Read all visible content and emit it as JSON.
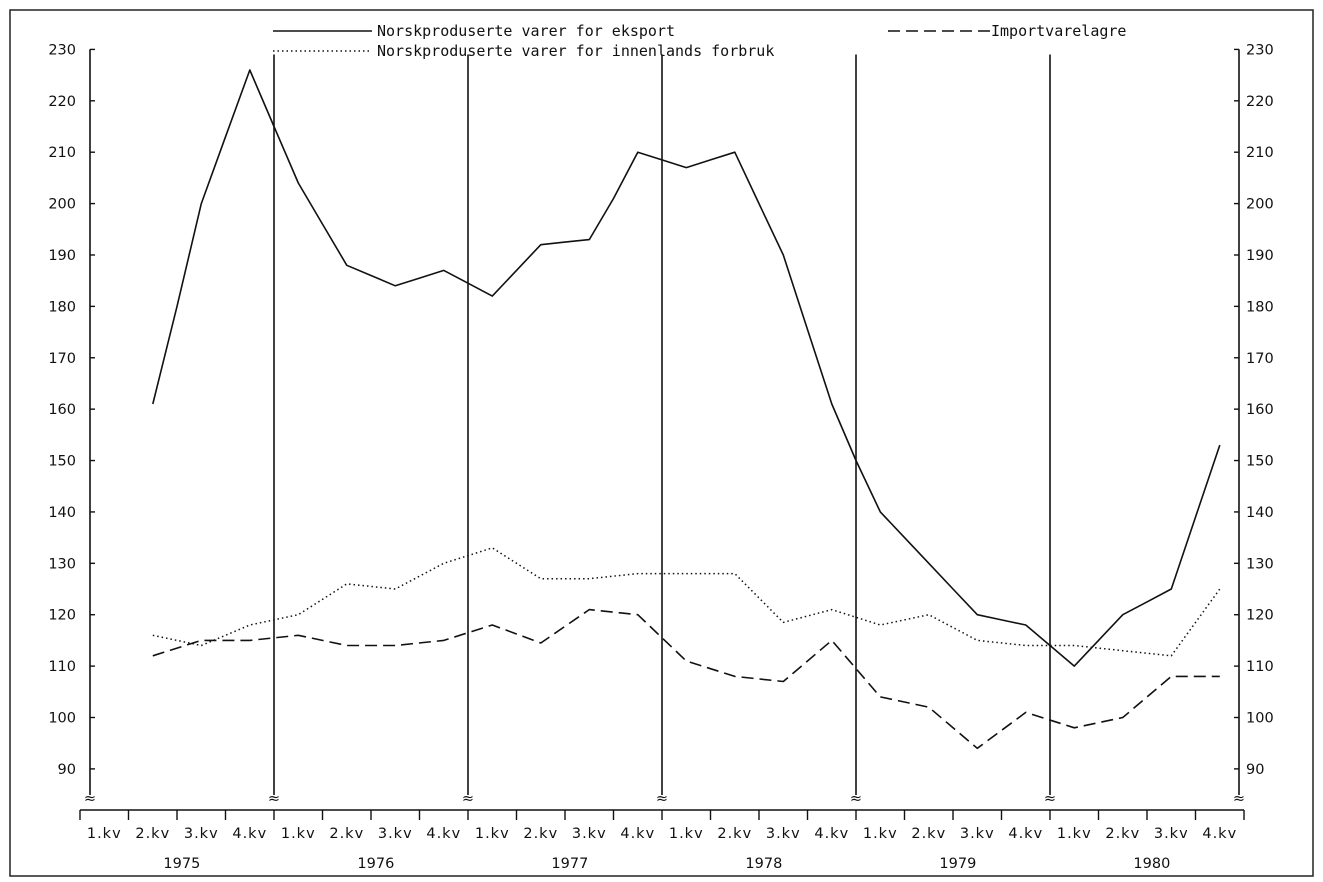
{
  "chart_data": {
    "type": "line",
    "title": "",
    "xlabel": "",
    "ylabel": "",
    "ylim": [
      82,
      233
    ],
    "y_ticks": [
      90,
      100,
      110,
      120,
      130,
      140,
      150,
      160,
      170,
      180,
      190,
      200,
      210,
      220,
      230
    ],
    "years": [
      "1975",
      "1976",
      "1977",
      "1978",
      "1979",
      "1980"
    ],
    "quarter_labels": [
      "1.kv",
      "2.kv",
      "3.kv",
      "4.kv"
    ],
    "categories": [
      "1975 1.kv",
      "1975 2.kv",
      "1975 3.kv",
      "1975 4.kv",
      "1976 1.kv",
      "1976 2.kv",
      "1976 3.kv",
      "1976 4.kv",
      "1977 1.kv",
      "1977 2.kv",
      "1977 3.kv",
      "1977 4.kv",
      "1978 1.kv",
      "1978 2.kv",
      "1978 3.kv",
      "1978 4.kv",
      "1979 1.kv",
      "1979 2.kv",
      "1979 3.kv",
      "1979 4.kv",
      "1980 1.kv",
      "1980 2.kv",
      "1980 3.kv",
      "1980 4.kv"
    ],
    "x": [
      1.5,
      2,
      2.5,
      3,
      3.5,
      4,
      4.5,
      5,
      5.5,
      6,
      6.5,
      7,
      7.5,
      8,
      8.5,
      9,
      9.5,
      10,
      10.5,
      11,
      11.5,
      12,
      12.5,
      13,
      13.5,
      14,
      14.5,
      15,
      15.5,
      16,
      16.5,
      17,
      17.5,
      18,
      18.5,
      19,
      19.5,
      20,
      20.5,
      21,
      21.5,
      22,
      22.5,
      23,
      23.5
    ],
    "series": [
      {
        "name": "Norskproduserte varer for eksport",
        "style": "solid",
        "points": [
          [
            1.5,
            161
          ],
          [
            2,
            180
          ],
          [
            2.5,
            200
          ],
          [
            3,
            213
          ],
          [
            3.5,
            226
          ],
          [
            4,
            215
          ],
          [
            4.5,
            204
          ],
          [
            5,
            196
          ],
          [
            5.5,
            188
          ],
          [
            6,
            186
          ],
          [
            6.5,
            184
          ],
          [
            7,
            185.5
          ],
          [
            7.5,
            187
          ],
          [
            8,
            184.5
          ],
          [
            8.5,
            182
          ],
          [
            9,
            187
          ],
          [
            9.5,
            192
          ],
          [
            10,
            192.5
          ],
          [
            10.5,
            193
          ],
          [
            11,
            201
          ],
          [
            11.5,
            210
          ],
          [
            12,
            208.5
          ],
          [
            12.5,
            207
          ],
          [
            13,
            208.5
          ],
          [
            13.5,
            210
          ],
          [
            14,
            200
          ],
          [
            14.5,
            190
          ],
          [
            15,
            175.5
          ],
          [
            15.5,
            161
          ],
          [
            16,
            150
          ],
          [
            16.5,
            140
          ],
          [
            17,
            135
          ],
          [
            17.5,
            130
          ],
          [
            18,
            125
          ],
          [
            18.5,
            120
          ],
          [
            19,
            119
          ],
          [
            19.5,
            118
          ],
          [
            20,
            114
          ],
          [
            20.5,
            110
          ],
          [
            21,
            115
          ],
          [
            21.5,
            120
          ],
          [
            22,
            122.5
          ],
          [
            22.5,
            125
          ],
          [
            23,
            139
          ],
          [
            23.5,
            153
          ]
        ]
      },
      {
        "name": "Norskproduserte varer for innenlands forbruk",
        "style": "dotted",
        "points": [
          [
            1.5,
            116
          ],
          [
            2.5,
            114
          ],
          [
            3.5,
            118
          ],
          [
            4.5,
            120
          ],
          [
            5.5,
            126
          ],
          [
            6.5,
            125
          ],
          [
            7.5,
            130
          ],
          [
            8.5,
            133
          ],
          [
            9.5,
            127
          ],
          [
            10.5,
            127
          ],
          [
            11.5,
            128
          ],
          [
            12.5,
            128
          ],
          [
            13.5,
            128
          ],
          [
            14.5,
            118.5
          ],
          [
            15.5,
            121
          ],
          [
            16.5,
            118
          ],
          [
            17.5,
            120
          ],
          [
            18.5,
            115
          ],
          [
            19.5,
            114
          ],
          [
            20.5,
            114
          ],
          [
            21.5,
            113
          ],
          [
            22.5,
            112
          ],
          [
            23.5,
            125
          ]
        ]
      },
      {
        "name": "Importvarelagre",
        "style": "dashed",
        "points": [
          [
            1.5,
            112
          ],
          [
            2.5,
            115
          ],
          [
            3.5,
            115
          ],
          [
            4.5,
            116
          ],
          [
            5.5,
            114
          ],
          [
            6.5,
            114
          ],
          [
            7.5,
            115
          ],
          [
            8.5,
            118
          ],
          [
            9.5,
            114.5
          ],
          [
            10.5,
            121
          ],
          [
            11.5,
            120
          ],
          [
            12.5,
            111
          ],
          [
            13.5,
            108
          ],
          [
            14.5,
            107
          ],
          [
            15.5,
            115
          ],
          [
            16.5,
            104
          ],
          [
            17.5,
            102
          ],
          [
            18.5,
            94
          ],
          [
            19.5,
            101
          ],
          [
            20.5,
            98
          ],
          [
            21.5,
            100
          ],
          [
            22.5,
            108
          ],
          [
            23.5,
            108
          ]
        ]
      }
    ],
    "legend": {
      "placement": "top-center",
      "entries": [
        {
          "label": "Norskproduserte varer for eksport",
          "style": "solid"
        },
        {
          "label": "Importvarelagre",
          "style": "dashed"
        },
        {
          "label": "Norskproduserte varer for innenlands forbruk",
          "style": "dotted"
        }
      ]
    },
    "grid": "vertical year separators",
    "axis_break_marker": "≈",
    "line_color": "#111111"
  }
}
